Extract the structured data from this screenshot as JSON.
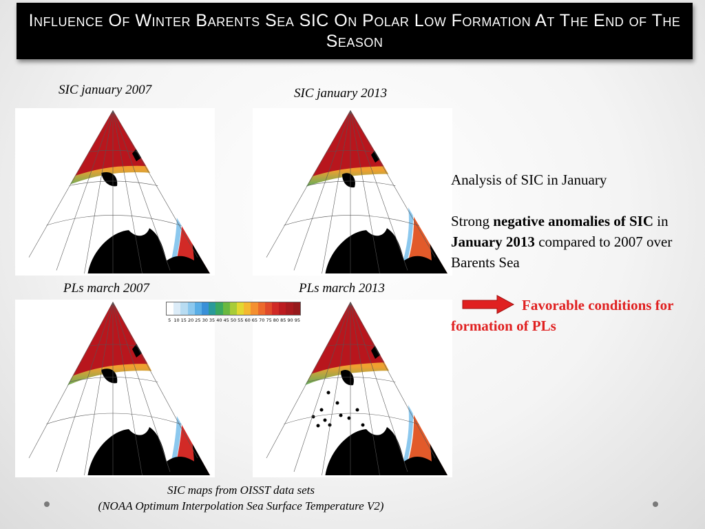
{
  "slide": {
    "title": "Influence Of Winter Barents Sea SIC On Polar Low Formation At The End of The Season",
    "captions": {
      "sic_2007": "SIC january 2007",
      "sic_2013": "SIC january 2013",
      "pl_2007": "PLs march 2007",
      "pl_2013": "PLs march 2013"
    },
    "colorbar": {
      "ticks": [
        "5",
        "10",
        "15",
        "20",
        "25",
        "30",
        "35",
        "40",
        "45",
        "50",
        "55",
        "60",
        "65",
        "70",
        "75",
        "80",
        "85",
        "90",
        "95"
      ],
      "colors": [
        "#ffffff",
        "#dcecf8",
        "#b8dcf2",
        "#8cc8ee",
        "#5aaee6",
        "#3a90d8",
        "#2a9a9a",
        "#3aa860",
        "#6ab840",
        "#a8cc38",
        "#e2d830",
        "#f4b830",
        "#f49030",
        "#ec6a2c",
        "#e04a2a",
        "#d02a26",
        "#bc1c20",
        "#a81a1e",
        "#961a1c"
      ]
    },
    "analysis": {
      "heading": "Analysis of SIC in January",
      "line_prefix": "Strong ",
      "bold1": "negative anomalies of SIC",
      "mid": " in ",
      "bold2": "January 2013",
      "suffix": " compared to 2007 over Barents Sea"
    },
    "favorable": "Favorable conditions for formation of PLs",
    "source_line1": "SIC maps from OISST data sets",
    "source_line2": "(NOAA Optimum Interpolation Sea Surface Temperature V2)",
    "colors": {
      "ice_red": "#b8161d",
      "accent_red": "#e02020",
      "land": "#000000"
    }
  }
}
